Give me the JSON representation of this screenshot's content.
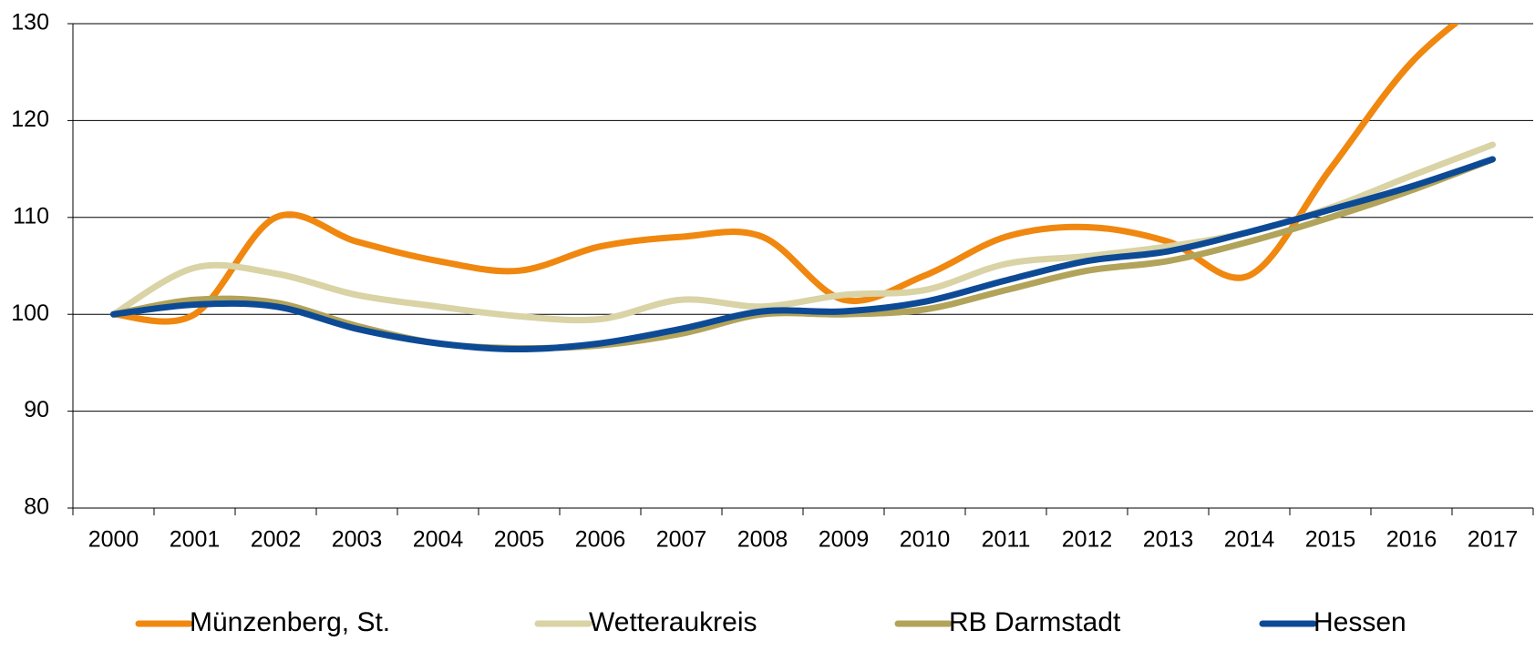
{
  "chart_data": {
    "type": "line",
    "categories": [
      "2000",
      "2001",
      "2002",
      "2003",
      "2004",
      "2005",
      "2006",
      "2007",
      "2008",
      "2009",
      "2010",
      "2011",
      "2012",
      "2013",
      "2014",
      "2015",
      "2016",
      "2017"
    ],
    "series": [
      {
        "name": "Münzenberg, St.",
        "color": "#f0870f",
        "values": [
          100,
          100,
          110,
          107.5,
          105.5,
          104.5,
          107,
          108,
          108,
          101.5,
          104,
          108,
          109,
          107.5,
          104,
          115,
          126,
          133
        ]
      },
      {
        "name": "Wetteraukreis",
        "color": "#d9d3a5",
        "values": [
          100,
          104.8,
          104.2,
          102,
          100.8,
          99.8,
          99.5,
          101.5,
          100.8,
          102,
          102.5,
          105.2,
          106,
          107,
          108.5,
          111,
          114.3,
          117.5
        ]
      },
      {
        "name": "RB Darmstadt",
        "color": "#b1a359",
        "values": [
          100,
          101.5,
          101.2,
          98.8,
          97,
          96.5,
          96.8,
          98,
          100,
          100,
          100.5,
          102.5,
          104.5,
          105.5,
          107.5,
          110,
          112.8,
          116
        ]
      },
      {
        "name": "Hessen",
        "color": "#0d4a96",
        "values": [
          100,
          101,
          100.8,
          98.5,
          97,
          96.4,
          97,
          98.5,
          100.3,
          100.3,
          101.3,
          103.5,
          105.5,
          106.5,
          108.5,
          110.8,
          113.2,
          116
        ]
      }
    ],
    "ylim": [
      80,
      130
    ],
    "yticks": [
      80,
      90,
      100,
      110,
      120,
      130
    ],
    "grid": true,
    "legend": "bottom"
  }
}
